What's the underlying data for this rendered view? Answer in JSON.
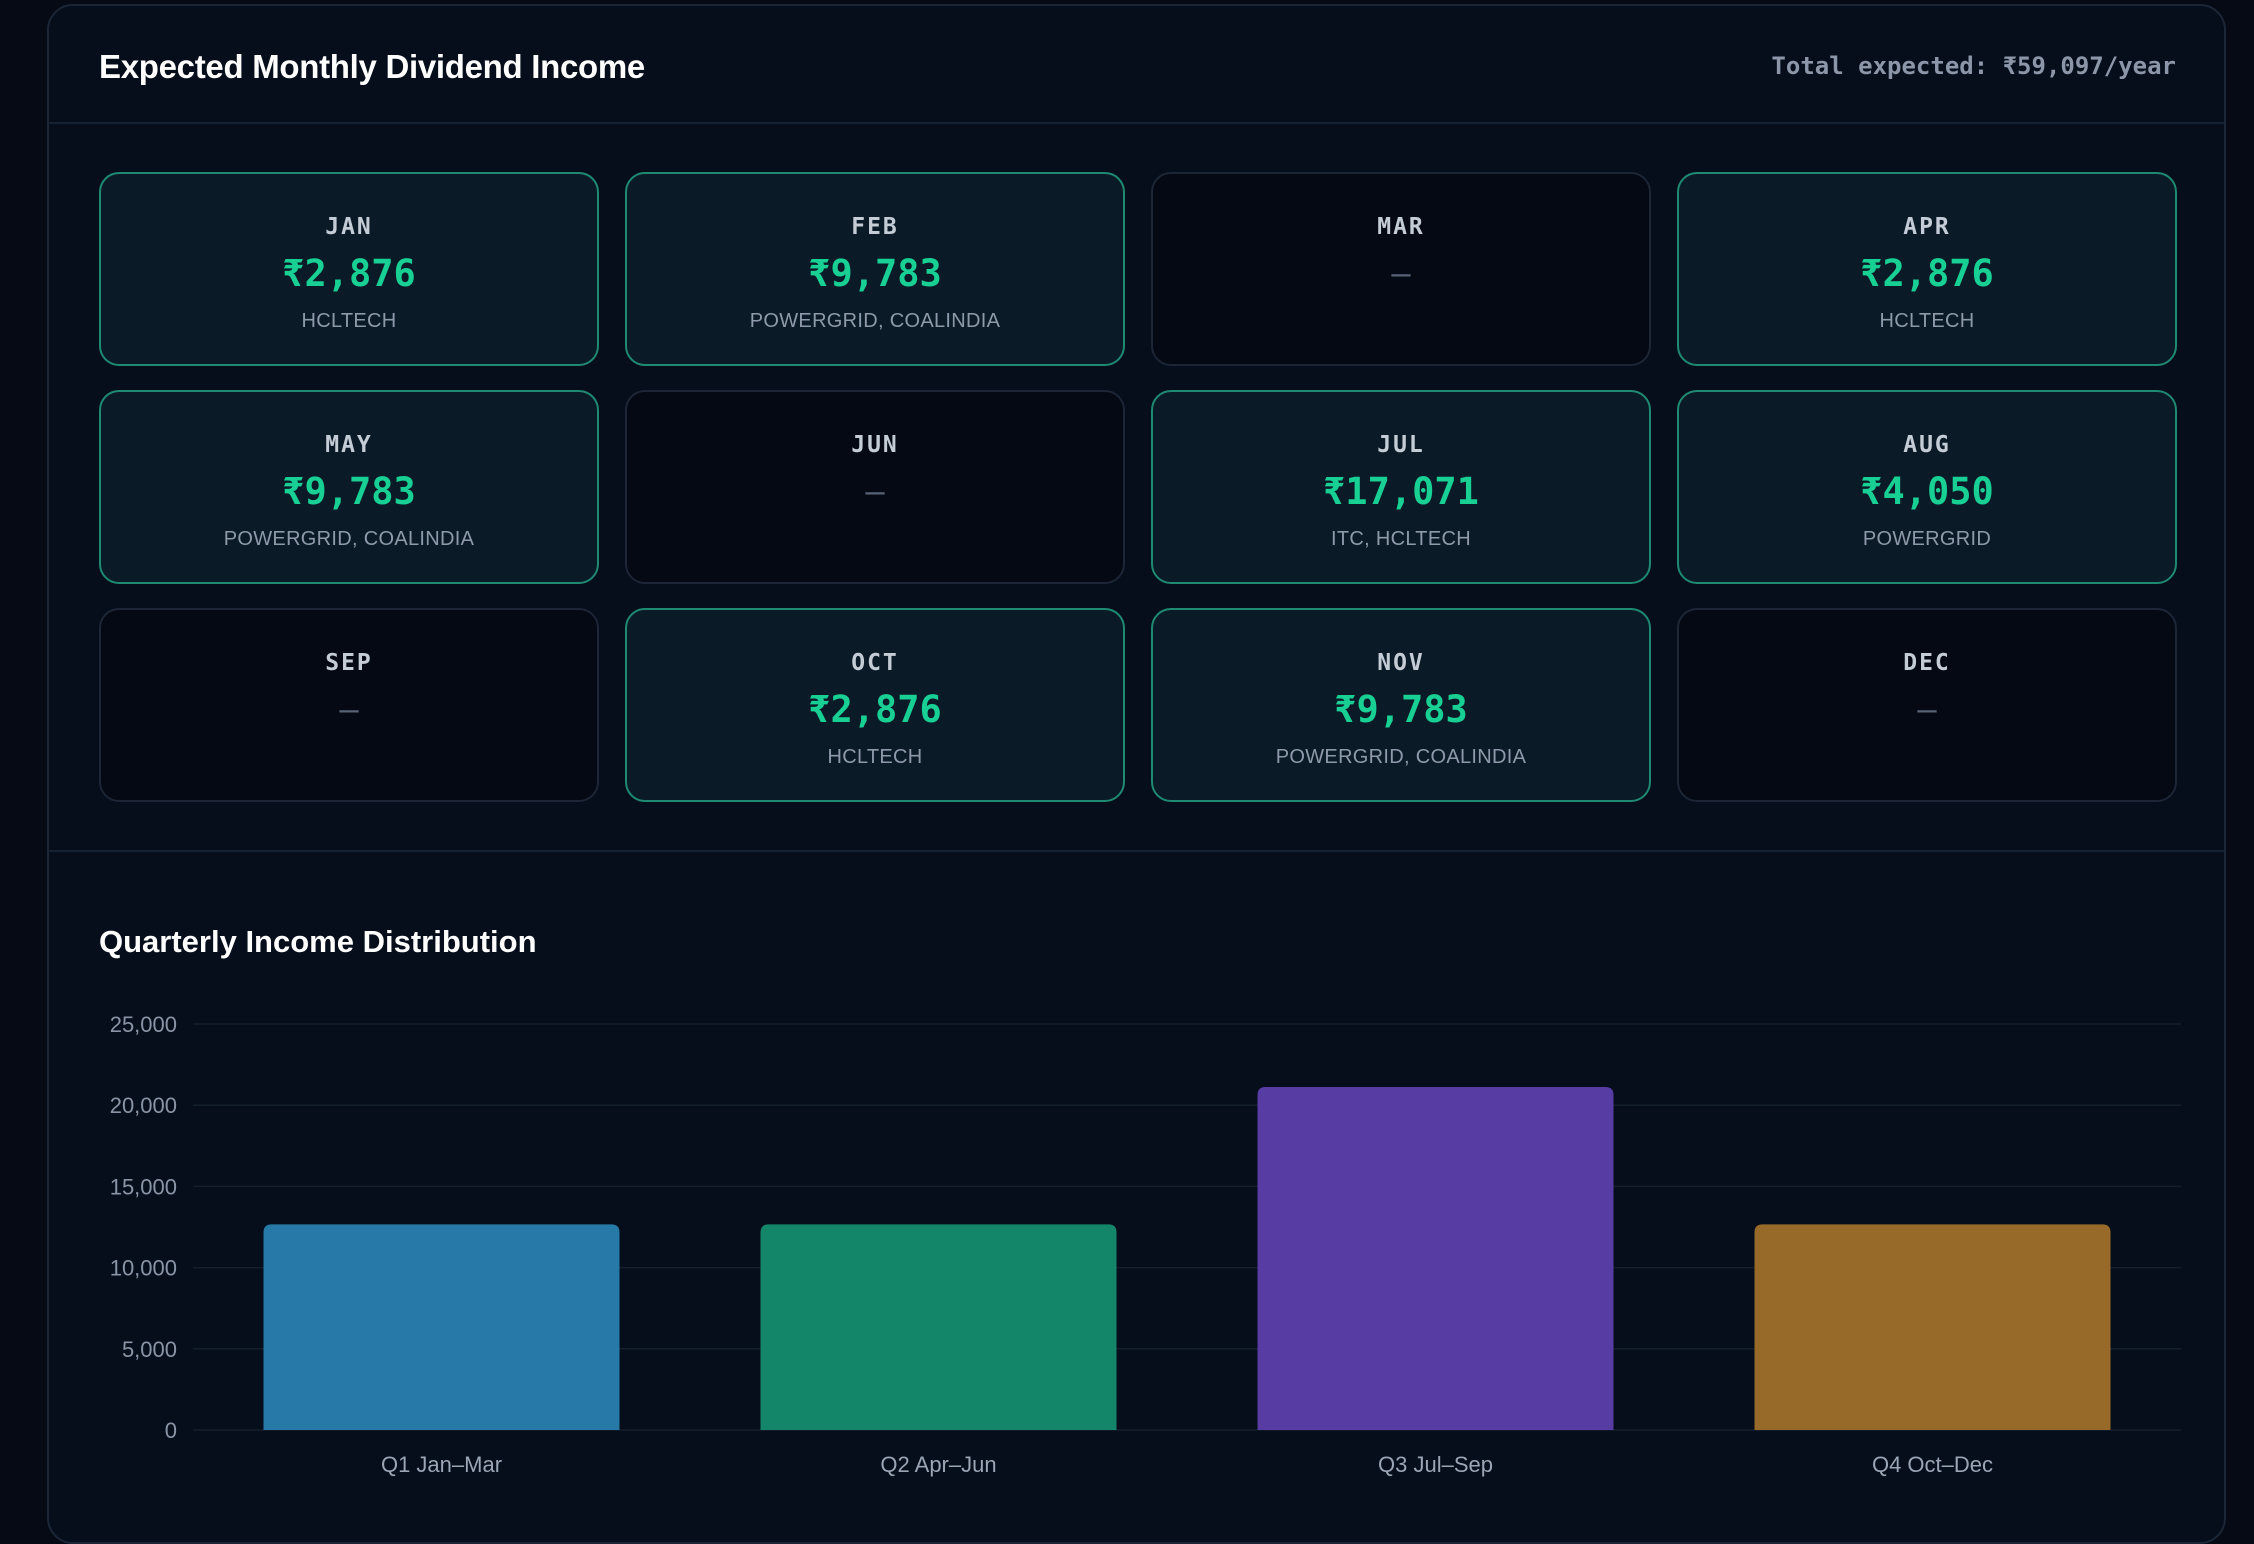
{
  "header": {
    "title": "Expected Monthly Dividend Income",
    "total": "Total expected: ₹59,097/year"
  },
  "months": [
    {
      "month": "JAN",
      "amount": "₹2,876",
      "tickers": "HCLTECH",
      "paying": true
    },
    {
      "month": "FEB",
      "amount": "₹9,783",
      "tickers": "POWERGRID, COALINDIA",
      "paying": true
    },
    {
      "month": "MAR",
      "amount": "—",
      "tickers": "",
      "paying": false
    },
    {
      "month": "APR",
      "amount": "₹2,876",
      "tickers": "HCLTECH",
      "paying": true
    },
    {
      "month": "MAY",
      "amount": "₹9,783",
      "tickers": "POWERGRID, COALINDIA",
      "paying": true
    },
    {
      "month": "JUN",
      "amount": "—",
      "tickers": "",
      "paying": false
    },
    {
      "month": "JUL",
      "amount": "₹17,071",
      "tickers": "ITC, HCLTECH",
      "paying": true
    },
    {
      "month": "AUG",
      "amount": "₹4,050",
      "tickers": "POWERGRID",
      "paying": true
    },
    {
      "month": "SEP",
      "amount": "—",
      "tickers": "",
      "paying": false
    },
    {
      "month": "OCT",
      "amount": "₹2,876",
      "tickers": "HCLTECH",
      "paying": true
    },
    {
      "month": "NOV",
      "amount": "₹9,783",
      "tickers": "POWERGRID, COALINDIA",
      "paying": true
    },
    {
      "month": "DEC",
      "amount": "—",
      "tickers": "",
      "paying": false
    }
  ],
  "colors": {
    "accent": "#18cf94",
    "card_border": "#1e8a72",
    "empty_border": "#1c2636"
  },
  "chart_data": {
    "type": "bar",
    "title": "Quarterly Income Distribution",
    "categories": [
      "Q1 Jan–Mar",
      "Q2 Apr–Jun",
      "Q3 Jul–Sep",
      "Q4 Oct–Dec"
    ],
    "values": [
      12659,
      12659,
      21121,
      12659
    ],
    "colors": [
      "#2779a7",
      "#138669",
      "#573da3",
      "#976a29"
    ],
    "ylim": [
      0,
      25000
    ],
    "yticks": [
      0,
      5000,
      10000,
      15000,
      20000,
      25000
    ],
    "ytick_labels": [
      "0",
      "5,000",
      "10,000",
      "15,000",
      "20,000",
      "25,000"
    ],
    "grid": true,
    "xlabel": "",
    "ylabel": ""
  }
}
